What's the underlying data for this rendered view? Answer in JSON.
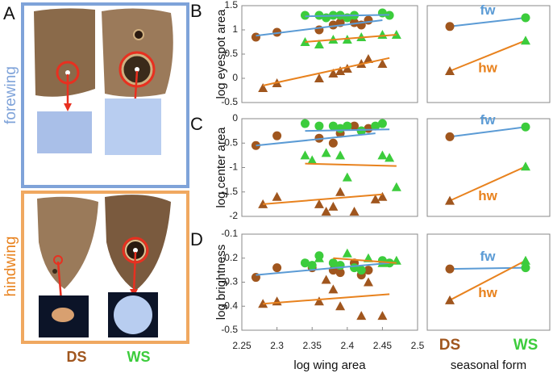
{
  "panel_a": {
    "letter": "A",
    "rows": [
      "forewing",
      "hindwing"
    ],
    "columns": [
      "DS",
      "WS"
    ]
  },
  "chart_data": [
    {
      "type": "scatter",
      "label": "B",
      "ylabel": "log eyespot area",
      "ylim": [
        -0.5,
        1.5
      ],
      "yticks": [
        -0.5,
        0,
        0.5,
        1,
        1.5
      ],
      "xlim": [
        2.25,
        2.5
      ],
      "series": [
        {
          "color": "#a0561e",
          "marker": "circle",
          "x": [
            2.27,
            2.3,
            2.36,
            2.38,
            2.39,
            2.41,
            2.42,
            2.43
          ],
          "values": [
            0.85,
            0.95,
            1.0,
            1.1,
            1.15,
            1.15,
            1.1,
            1.2
          ]
        },
        {
          "color": "#3ccc3c",
          "marker": "circle",
          "x": [
            2.34,
            2.36,
            2.37,
            2.38,
            2.39,
            2.4,
            2.41,
            2.45,
            2.46
          ],
          "values": [
            1.3,
            1.3,
            1.25,
            1.3,
            1.3,
            1.25,
            1.3,
            1.35,
            1.3
          ]
        },
        {
          "color": "#a0561e",
          "marker": "triangle",
          "x": [
            2.28,
            2.3,
            2.36,
            2.38,
            2.39,
            2.4,
            2.42,
            2.43,
            2.45
          ],
          "values": [
            -0.2,
            -0.1,
            0.0,
            0.1,
            0.15,
            0.2,
            0.3,
            0.4,
            0.3
          ]
        },
        {
          "color": "#3ccc3c",
          "marker": "triangle",
          "x": [
            2.34,
            2.36,
            2.38,
            2.4,
            2.42,
            2.45,
            2.47
          ],
          "values": [
            0.75,
            0.7,
            0.8,
            0.8,
            0.85,
            0.9,
            0.9
          ]
        }
      ],
      "fits": [
        {
          "color": "#5b9bd5",
          "x": [
            2.27,
            2.45
          ],
          "values": [
            0.88,
            1.2
          ]
        },
        {
          "color": "#5b9bd5",
          "x": [
            2.34,
            2.46
          ],
          "values": [
            1.28,
            1.31
          ]
        },
        {
          "color": "#e8821e",
          "x": [
            2.28,
            2.46
          ],
          "values": [
            -0.15,
            0.42
          ]
        },
        {
          "color": "#e8821e",
          "x": [
            2.34,
            2.47
          ],
          "values": [
            0.75,
            0.9
          ]
        }
      ]
    },
    {
      "type": "dot",
      "ylim": [
        -0.5,
        1.5
      ],
      "category_colors": [
        "#a0561e",
        "#3ccc3c"
      ],
      "series": [
        {
          "name": "fw",
          "color": "#5b9bd5",
          "marker": "circle",
          "values": [
            1.07,
            1.25
          ]
        },
        {
          "name": "hw",
          "color": "#e8821e",
          "marker": "triangle",
          "values": [
            0.15,
            0.78
          ]
        }
      ]
    },
    {
      "type": "scatter",
      "label": "C",
      "ylabel": "log center area",
      "ylim": [
        -2,
        0
      ],
      "yticks": [
        -2,
        -1.5,
        -1,
        -0.5,
        0
      ],
      "xlim": [
        2.25,
        2.5
      ],
      "series": [
        {
          "color": "#a0561e",
          "marker": "circle",
          "x": [
            2.27,
            2.3,
            2.36,
            2.38,
            2.39,
            2.41,
            2.42,
            2.43
          ],
          "values": [
            -0.55,
            -0.35,
            -0.4,
            -0.5,
            -0.3,
            -0.15,
            -0.25,
            -0.2
          ]
        },
        {
          "color": "#3ccc3c",
          "marker": "circle",
          "x": [
            2.34,
            2.36,
            2.38,
            2.39,
            2.4,
            2.42,
            2.44,
            2.45
          ],
          "values": [
            -0.1,
            -0.15,
            -0.15,
            -0.2,
            -0.15,
            -0.25,
            -0.15,
            -0.1
          ]
        },
        {
          "color": "#a0561e",
          "marker": "triangle",
          "x": [
            2.28,
            2.3,
            2.36,
            2.37,
            2.38,
            2.39,
            2.41,
            2.44,
            2.45
          ],
          "values": [
            -1.75,
            -1.6,
            -1.75,
            -1.9,
            -1.8,
            -1.5,
            -1.9,
            -1.65,
            -1.6
          ]
        },
        {
          "color": "#3ccc3c",
          "marker": "triangle",
          "x": [
            2.34,
            2.35,
            2.37,
            2.39,
            2.4,
            2.45,
            2.46,
            2.47
          ],
          "values": [
            -0.75,
            -0.85,
            -0.7,
            -0.75,
            -1.2,
            -0.75,
            -0.8,
            -1.4
          ]
        }
      ],
      "fits": [
        {
          "color": "#5b9bd5",
          "x": [
            2.27,
            2.44
          ],
          "values": [
            -0.55,
            -0.3
          ]
        },
        {
          "color": "#5b9bd5",
          "x": [
            2.34,
            2.46
          ],
          "values": [
            -0.25,
            -0.22
          ]
        },
        {
          "color": "#e8821e",
          "x": [
            2.34,
            2.47
          ],
          "values": [
            -0.92,
            -0.97
          ]
        },
        {
          "color": "#e8821e",
          "x": [
            2.28,
            2.45
          ],
          "values": [
            -1.75,
            -1.55
          ]
        }
      ]
    },
    {
      "type": "dot",
      "ylim": [
        -2,
        0
      ],
      "category_colors": [
        "#a0561e",
        "#3ccc3c"
      ],
      "series": [
        {
          "name": "fw",
          "color": "#5b9bd5",
          "marker": "circle",
          "values": [
            -0.37,
            -0.17
          ]
        },
        {
          "name": "hw",
          "color": "#e8821e",
          "marker": "triangle",
          "values": [
            -1.68,
            -0.98
          ]
        }
      ]
    },
    {
      "type": "scatter",
      "label": "D",
      "ylabel": "log brightness",
      "xlabel": "log wing area",
      "ylim": [
        -0.5,
        -0.1
      ],
      "yticks": [
        -0.5,
        -0.4,
        -0.3,
        -0.2,
        -0.1
      ],
      "xlim": [
        2.25,
        2.5
      ],
      "xticks": [
        2.25,
        2.3,
        2.35,
        2.4,
        2.45,
        2.5
      ],
      "series": [
        {
          "color": "#a0561e",
          "marker": "circle",
          "x": [
            2.27,
            2.3,
            2.35,
            2.38,
            2.39,
            2.41,
            2.42,
            2.43
          ],
          "values": [
            -0.28,
            -0.24,
            -0.24,
            -0.25,
            -0.26,
            -0.22,
            -0.27,
            -0.25
          ]
        },
        {
          "color": "#3ccc3c",
          "marker": "circle",
          "x": [
            2.34,
            2.35,
            2.36,
            2.38,
            2.39,
            2.41,
            2.42,
            2.45,
            2.46
          ],
          "values": [
            -0.22,
            -0.23,
            -0.19,
            -0.22,
            -0.23,
            -0.24,
            -0.25,
            -0.21,
            -0.22
          ]
        },
        {
          "color": "#a0561e",
          "marker": "triangle",
          "x": [
            2.28,
            2.3,
            2.36,
            2.37,
            2.38,
            2.39,
            2.42,
            2.43,
            2.45
          ],
          "values": [
            -0.39,
            -0.38,
            -0.38,
            -0.29,
            -0.33,
            -0.4,
            -0.44,
            -0.3,
            -0.44
          ]
        },
        {
          "color": "#3ccc3c",
          "marker": "triangle",
          "x": [
            2.36,
            2.4,
            2.43,
            2.45,
            2.47
          ],
          "values": [
            -0.2,
            -0.18,
            -0.2,
            -0.22,
            -0.21
          ]
        }
      ],
      "fits": [
        {
          "color": "#5b9bd5",
          "x": [
            2.27,
            2.46
          ],
          "values": [
            -0.27,
            -0.22
          ]
        },
        {
          "color": "#e8821e",
          "x": [
            2.28,
            2.46
          ],
          "values": [
            -0.39,
            -0.35
          ]
        },
        {
          "color": "#e8821e",
          "x": [
            2.38,
            2.47
          ],
          "values": [
            -0.2,
            -0.22
          ]
        }
      ]
    },
    {
      "type": "dot",
      "xlabel": "seasonal form",
      "ylim": [
        -0.5,
        -0.1
      ],
      "categories": [
        "DS",
        "WS"
      ],
      "category_colors": [
        "#a0561e",
        "#3ccc3c"
      ],
      "series": [
        {
          "name": "fw",
          "color": "#5b9bd5",
          "marker": "circle",
          "values": [
            -0.245,
            -0.24
          ]
        },
        {
          "name": "hw",
          "color": "#e8821e",
          "marker": "triangle",
          "values": [
            -0.375,
            -0.21
          ]
        }
      ]
    }
  ]
}
